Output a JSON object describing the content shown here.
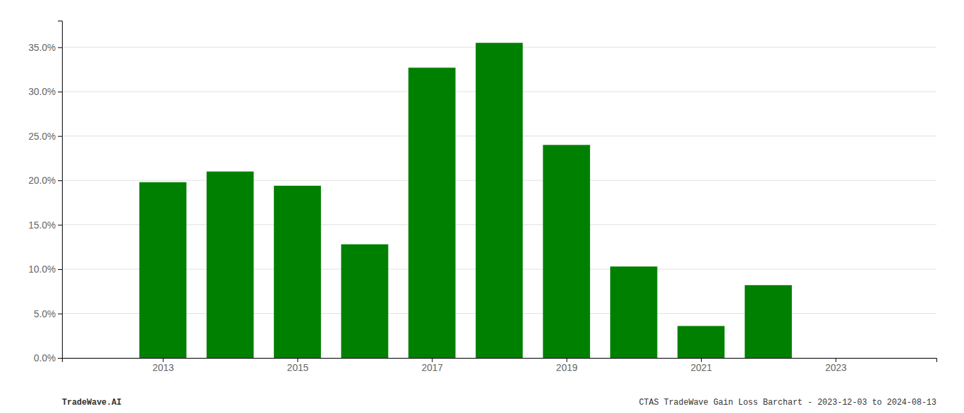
{
  "chart_data": {
    "type": "bar",
    "x": [
      2013,
      2014,
      2015,
      2016,
      2017,
      2018,
      2019,
      2020,
      2021,
      2022
    ],
    "values": [
      0.198,
      0.21,
      0.194,
      0.128,
      0.327,
      0.355,
      0.24,
      0.103,
      0.036,
      0.082
    ],
    "color": "#008000",
    "xlim": [
      2011.5,
      2024.5
    ],
    "xticks": [
      2013,
      2015,
      2017,
      2019,
      2021,
      2023
    ],
    "ylim": [
      0.0,
      0.38
    ],
    "yticks": [
      {
        "value": 0.0,
        "label": "0.0%"
      },
      {
        "value": 0.05,
        "label": "5.0%"
      },
      {
        "value": 0.1,
        "label": "10.0%"
      },
      {
        "value": 0.15,
        "label": "15.0%"
      },
      {
        "value": 0.2,
        "label": "20.0%"
      },
      {
        "value": 0.25,
        "label": "25.0%"
      },
      {
        "value": 0.3,
        "label": "30.0%"
      },
      {
        "value": 0.35,
        "label": "35.0%"
      }
    ],
    "grid": true,
    "annotations": [
      "TradeWave.AI",
      "CTAS TradeWave Gain Loss Barchart - 2023-12-03 to 2024-08-13"
    ]
  }
}
